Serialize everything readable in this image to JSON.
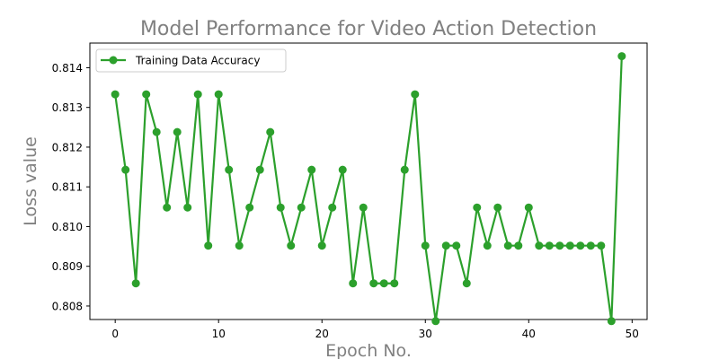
{
  "chart_data": {
    "type": "line",
    "title": "Model Performance for Video Action Detection",
    "xlabel": "Epoch No.",
    "ylabel": "Loss value",
    "xlim": [
      -2.45,
      51.45
    ],
    "ylim": [
      0.80766,
      0.81462
    ],
    "xticks": [
      0,
      10,
      20,
      30,
      40,
      50
    ],
    "yticks": [
      0.808,
      0.809,
      0.81,
      0.811,
      0.812,
      0.813,
      0.814
    ],
    "ytick_labels": [
      "0.808",
      "0.809",
      "0.810",
      "0.811",
      "0.812",
      "0.813",
      "0.814"
    ],
    "grid": false,
    "legend_position": "upper left",
    "series": [
      {
        "name": "Training Data Accuracy",
        "color": "#2ca02c",
        "marker": "circle",
        "x": [
          0,
          1,
          2,
          3,
          4,
          5,
          6,
          7,
          8,
          9,
          10,
          11,
          12,
          13,
          14,
          15,
          16,
          17,
          18,
          19,
          20,
          21,
          22,
          23,
          24,
          25,
          26,
          27,
          28,
          29,
          30,
          31,
          32,
          33,
          34,
          35,
          36,
          37,
          38,
          39,
          40,
          41,
          42,
          43,
          44,
          45,
          46,
          47,
          48,
          49
        ],
        "values": [
          0.81333,
          0.81143,
          0.80857,
          0.81333,
          0.81238,
          0.81048,
          0.81238,
          0.81048,
          0.81333,
          0.80952,
          0.81333,
          0.81143,
          0.80952,
          0.81048,
          0.81143,
          0.81238,
          0.81048,
          0.80952,
          0.81048,
          0.81143,
          0.80952,
          0.81048,
          0.81143,
          0.80857,
          0.81048,
          0.80857,
          0.80857,
          0.80857,
          0.81143,
          0.81333,
          0.80952,
          0.80762,
          0.80952,
          0.80952,
          0.80857,
          0.81048,
          0.80952,
          0.81048,
          0.80952,
          0.80952,
          0.81048,
          0.80952,
          0.80952,
          0.80952,
          0.80952,
          0.80952,
          0.80952,
          0.80952,
          0.80762,
          0.81429
        ]
      }
    ]
  }
}
